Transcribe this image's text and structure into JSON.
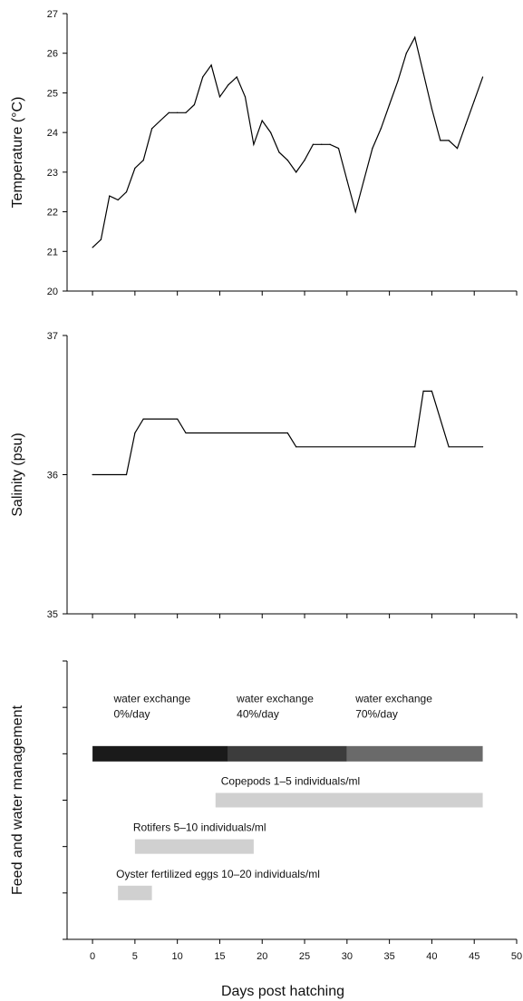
{
  "chart_data": [
    {
      "type": "line",
      "title": "",
      "xlabel": "",
      "ylabel": "Temperature (°C)",
      "xlim": [
        -3,
        50
      ],
      "ylim": [
        20,
        27
      ],
      "yticks": [
        "20",
        "21",
        "22",
        "23",
        "24",
        "25",
        "26",
        "27"
      ],
      "grid": false,
      "series": [
        {
          "x": [
            0,
            1,
            2,
            3,
            4,
            5,
            6,
            7,
            8,
            9,
            10,
            11,
            12,
            13,
            14,
            15,
            16,
            17,
            18,
            19,
            20,
            21,
            22,
            23,
            24,
            25,
            26,
            27,
            28,
            29,
            30,
            31,
            32,
            33,
            34,
            35,
            36,
            37,
            38,
            39,
            40,
            41,
            42,
            43,
            44,
            45,
            46
          ],
          "y": [
            21.1,
            21.3,
            22.4,
            22.3,
            22.5,
            23.1,
            23.3,
            24.1,
            24.3,
            24.5,
            24.5,
            24.5,
            24.7,
            25.4,
            25.7,
            24.9,
            25.2,
            25.4,
            24.9,
            23.7,
            24.3,
            24.0,
            23.5,
            23.3,
            23.0,
            23.3,
            23.7,
            23.7,
            23.7,
            23.6,
            22.8,
            22.0,
            22.8,
            23.6,
            24.1,
            24.7,
            25.3,
            26.0,
            26.4,
            25.5,
            24.6,
            23.8,
            23.8,
            23.6,
            24.2,
            24.8,
            25.4
          ]
        }
      ]
    },
    {
      "type": "line",
      "title": "",
      "xlabel": "",
      "ylabel": "Salinity (psu)",
      "xlim": [
        -3,
        50
      ],
      "ylim": [
        35,
        37
      ],
      "yticks": [
        "35",
        "36",
        "37"
      ],
      "grid": false,
      "series": [
        {
          "x": [
            0,
            4,
            5,
            6,
            10,
            11,
            23,
            24,
            38,
            39,
            40,
            42,
            46
          ],
          "y": [
            36.0,
            36.0,
            36.3,
            36.4,
            36.4,
            36.3,
            36.3,
            36.2,
            36.2,
            36.6,
            36.6,
            36.2,
            36.2
          ]
        }
      ]
    },
    {
      "type": "bar",
      "title": "",
      "xlabel": "Days post hatching",
      "ylabel": "Feed and water management",
      "xlim": [
        -3,
        50
      ],
      "xticks": [
        "0",
        "5",
        "10",
        "15",
        "20",
        "25",
        "30",
        "35",
        "40",
        "45",
        "50"
      ],
      "y_tick_count": 7,
      "bars": [
        {
          "level": 4,
          "start": 0,
          "end": 16,
          "color": "#1a1a1a",
          "label": ""
        },
        {
          "level": 4,
          "start": 16,
          "end": 30,
          "color": "#3c3c3c",
          "label": ""
        },
        {
          "level": 4,
          "start": 30,
          "end": 46,
          "color": "#6a6a6a",
          "label": ""
        },
        {
          "level": 3,
          "start": 14.5,
          "end": 46,
          "color": "#d0d0d0",
          "label": "Copepods  1–5 individuals/ml"
        },
        {
          "level": 2,
          "start": 5,
          "end": 19,
          "color": "#d0d0d0",
          "label": "Rotifers 5–10 individuals/ml"
        },
        {
          "level": 1,
          "start": 3,
          "end": 7,
          "color": "#d0d0d0",
          "label": "Oyster fertilized eggs 10–20 individuals/ml"
        }
      ],
      "water_exchange": [
        {
          "x": 2.5,
          "line1": "water exchange",
          "line2": "0%/day"
        },
        {
          "x": 17,
          "line1": "water exchange",
          "line2": "40%/day"
        },
        {
          "x": 31,
          "line1": "water exchange",
          "line2": "70%/day"
        }
      ]
    }
  ]
}
